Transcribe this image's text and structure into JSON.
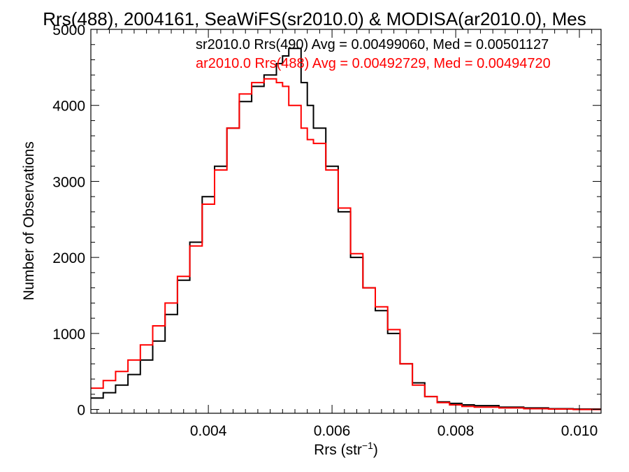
{
  "chart_data": {
    "type": "line",
    "title": "Rrs(488), 2004161, SeaWiFS(sr2010.0) & MODISA(ar2010.0), Mes",
    "xlabel": "Rrs (str",
    "xlabel_sup": "−1",
    "xlabel_close": ")",
    "ylabel": "Number of Observations",
    "xlim": [
      0.0021,
      0.01035
    ],
    "ylim": [
      -50,
      5000
    ],
    "x_ticks": [
      {
        "value": 0.004,
        "label": "0.004"
      },
      {
        "value": 0.006,
        "label": "0.006"
      },
      {
        "value": 0.008,
        "label": "0.008"
      },
      {
        "value": 0.01,
        "label": "0.010"
      }
    ],
    "y_ticks": [
      {
        "value": 0,
        "label": "0"
      },
      {
        "value": 1000,
        "label": "1000"
      },
      {
        "value": 2000,
        "label": "2000"
      },
      {
        "value": 3000,
        "label": "3000"
      },
      {
        "value": 4000,
        "label": "4000"
      },
      {
        "value": 5000,
        "label": "5000"
      }
    ],
    "legend_placement": "top-right",
    "series": [
      {
        "name": "sr2010.0 Rrs(490) Avg = 0.00499060, Med = 0.00501127",
        "color": "#000000",
        "x": [
          0.0021,
          0.0023,
          0.0025,
          0.0027,
          0.0029,
          0.0031,
          0.0033,
          0.0035,
          0.0037,
          0.0039,
          0.0041,
          0.0043,
          0.0045,
          0.0047,
          0.0049,
          0.0051,
          0.0052,
          0.0053,
          0.0055,
          0.0056,
          0.0057,
          0.0059,
          0.0061,
          0.0063,
          0.0065,
          0.0067,
          0.0069,
          0.0071,
          0.0073,
          0.0075,
          0.0077,
          0.0079,
          0.0081,
          0.0083,
          0.0087,
          0.0091,
          0.0095,
          0.0099,
          0.01035
        ],
        "y": [
          150,
          220,
          320,
          460,
          650,
          900,
          1250,
          1700,
          2200,
          2800,
          3200,
          3700,
          4050,
          4250,
          4400,
          4550,
          4650,
          4750,
          4300,
          4000,
          3700,
          3200,
          2600,
          2000,
          1600,
          1300,
          1000,
          600,
          350,
          170,
          100,
          80,
          60,
          50,
          30,
          20,
          10,
          5,
          5
        ]
      },
      {
        "name": "ar2010.0 Rrs(488) Avg = 0.00492729, Med = 0.00494720",
        "color": "#ff0000",
        "x": [
          0.0021,
          0.0023,
          0.0025,
          0.0027,
          0.0029,
          0.0031,
          0.0033,
          0.0035,
          0.0037,
          0.0039,
          0.0041,
          0.0043,
          0.0045,
          0.0047,
          0.0049,
          0.0051,
          0.0052,
          0.0053,
          0.0055,
          0.0056,
          0.0057,
          0.0059,
          0.0061,
          0.0063,
          0.0065,
          0.0067,
          0.0069,
          0.0071,
          0.0073,
          0.0075,
          0.0077,
          0.0079,
          0.0081,
          0.0083,
          0.0087,
          0.0091,
          0.0095,
          0.0099,
          0.01035
        ],
        "y": [
          280,
          380,
          500,
          650,
          850,
          1100,
          1400,
          1750,
          2150,
          2700,
          3150,
          3700,
          4150,
          4300,
          4350,
          4300,
          4250,
          4000,
          3700,
          3550,
          3500,
          3150,
          2650,
          2050,
          1600,
          1350,
          1050,
          600,
          320,
          170,
          90,
          60,
          40,
          30,
          20,
          10,
          5,
          0,
          0
        ]
      }
    ]
  }
}
